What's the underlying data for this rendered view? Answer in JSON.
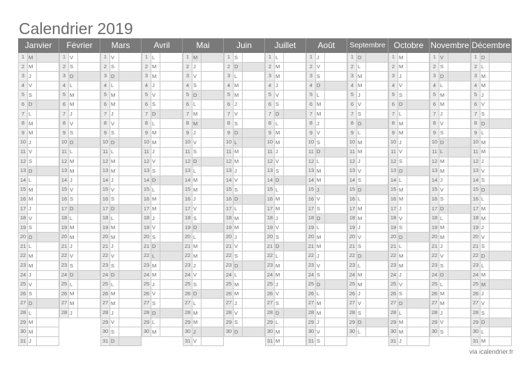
{
  "title": "Calendrier 2019",
  "footer": "via icalendrier.fr",
  "colors": {
    "header_bg": "#7a7a7a",
    "shaded": "#e4e4e4"
  },
  "months": [
    {
      "name": "Janvier",
      "letters": "MMJVSDLMMJVSDLMMJVSDLMMJVSDLMMJ",
      "holidays": [
        1
      ]
    },
    {
      "name": "Février",
      "letters": "VSDLMMJVSDLMMJVSDLMMJVSDLMMJ",
      "holidays": []
    },
    {
      "name": "Mars",
      "letters": "VSDLMMJVSDLMMJVSDLMMJVSDLMMJVSD",
      "holidays": []
    },
    {
      "name": "Avril",
      "letters": "LMMJVSDLMMJVSDLMMJVSDLMMJVSDLM",
      "holidays": [
        22
      ]
    },
    {
      "name": "Mai",
      "letters": "MJVSDLMMJVSDLMMJVSDLMMJVSDLMMJV",
      "holidays": [
        1,
        8,
        30
      ]
    },
    {
      "name": "Juin",
      "letters": "SDLMMJVSDLMMJVSDLMMJVSDLMMJVSD",
      "holidays": [
        10
      ]
    },
    {
      "name": "Juillet",
      "letters": "LMMJVSDLMMJVSDLMMJVSDLMMJVSDLMM",
      "holidays": [
        14
      ]
    },
    {
      "name": "Août",
      "letters": "JVSDLMMJVSDLMMJVSDLMMJVSDLMMJVS",
      "holidays": [
        15
      ]
    },
    {
      "name": "Septembre",
      "letters": "DLMMJVSDLMMJVSDLMMJVSDLMMJVSDL",
      "holidays": []
    },
    {
      "name": "Octobre",
      "letters": "MMJVSDLMMJVSDLMMJVSDLMMJVSDLMMJ",
      "holidays": []
    },
    {
      "name": "Novembre",
      "letters": "VSDLMMJVSDLMMJVSDLMMJVSDLMMJVS",
      "holidays": [
        1,
        11
      ]
    },
    {
      "name": "Décembre",
      "letters": "DLMMJVSDLMMJVSDLMMJVSDLMMJVSDLM",
      "holidays": [
        25
      ]
    }
  ]
}
